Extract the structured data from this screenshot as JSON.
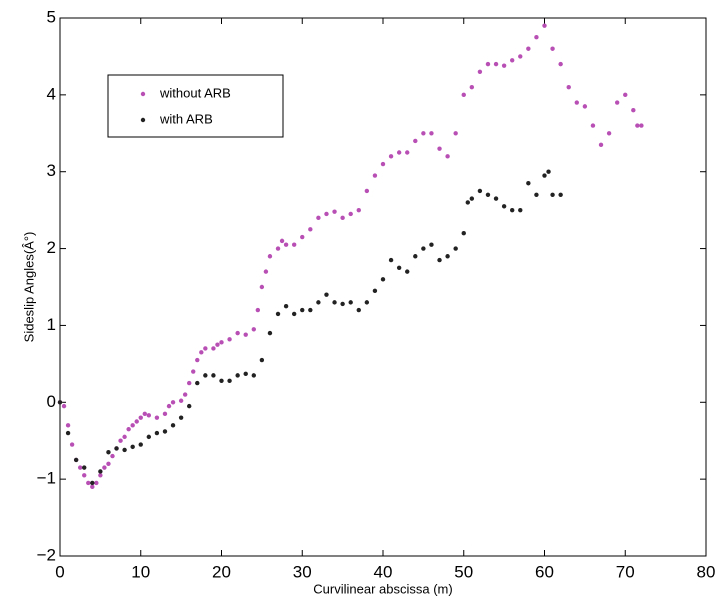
{
  "chart_data": {
    "type": "scatter",
    "xlabel": "Curvilinear abscissa (m)",
    "ylabel": "Sideslip Angles(Â°)",
    "xlim": [
      0,
      80
    ],
    "xticks": [
      0,
      10,
      20,
      30,
      40,
      50,
      60,
      70,
      80
    ],
    "ylim": [
      -2,
      5
    ],
    "yticks": [
      {
        "value": -2,
        "label": "−2"
      },
      {
        "value": -1,
        "label": "−1"
      },
      0,
      1,
      2,
      3,
      4,
      5
    ],
    "legend": "upper left",
    "series": [
      {
        "name": "without ARB",
        "color": "#b84fb5",
        "x": [
          0,
          0.5,
          1,
          1.5,
          2,
          2.5,
          3,
          3.5,
          4,
          4.5,
          5,
          5.5,
          6,
          6.5,
          7,
          7.5,
          8,
          8.5,
          9,
          9.5,
          10,
          10.5,
          11,
          12,
          13,
          13.5,
          14,
          15,
          15.5,
          16,
          16.5,
          17,
          17.5,
          18,
          19,
          19.5,
          20,
          21,
          22,
          23,
          24,
          24.5,
          25,
          25.5,
          26,
          27,
          27.5,
          28,
          29,
          30,
          31,
          32,
          33,
          34,
          35,
          36,
          37,
          38,
          39,
          40,
          41,
          42,
          43,
          44,
          45,
          46,
          47,
          48,
          49,
          50,
          51,
          52,
          53,
          54,
          55,
          56,
          57,
          58,
          59,
          60,
          61,
          62,
          63,
          64,
          65,
          66,
          67,
          68,
          69,
          70,
          71,
          71.5,
          72
        ],
        "values": [
          0,
          -0.05,
          -0.3,
          -0.55,
          -0.75,
          -0.85,
          -0.95,
          -1.05,
          -1.1,
          -1.05,
          -0.95,
          -0.85,
          -0.8,
          -0.7,
          -0.6,
          -0.5,
          -0.45,
          -0.35,
          -0.3,
          -0.25,
          -0.2,
          -0.15,
          -0.17,
          -0.2,
          -0.15,
          -0.05,
          0,
          0.02,
          0.1,
          0.25,
          0.4,
          0.55,
          0.65,
          0.7,
          0.7,
          0.75,
          0.78,
          0.82,
          0.9,
          0.88,
          0.95,
          1.2,
          1.5,
          1.7,
          1.9,
          2.0,
          2.1,
          2.05,
          2.05,
          2.15,
          2.25,
          2.4,
          2.45,
          2.48,
          2.4,
          2.45,
          2.5,
          2.75,
          2.95,
          3.1,
          3.2,
          3.25,
          3.25,
          3.4,
          3.5,
          3.5,
          3.3,
          3.2,
          3.5,
          4.0,
          4.1,
          4.3,
          4.4,
          4.4,
          4.38,
          4.45,
          4.5,
          4.6,
          4.75,
          4.9,
          4.6,
          4.4,
          4.1,
          3.9,
          3.85,
          3.6,
          3.35,
          3.5,
          3.9,
          4.0,
          3.8,
          3.6,
          3.6
        ]
      },
      {
        "name": "with ARB",
        "color": "#222222",
        "x": [
          0,
          1,
          2,
          3,
          4,
          5,
          6,
          7,
          8,
          9,
          10,
          11,
          12,
          13,
          14,
          15,
          16,
          17,
          18,
          19,
          20,
          21,
          22,
          23,
          24,
          25,
          26,
          27,
          28,
          29,
          30,
          31,
          32,
          33,
          34,
          35,
          36,
          37,
          38,
          39,
          40,
          41,
          42,
          43,
          44,
          45,
          46,
          47,
          48,
          49,
          50,
          50.5,
          51,
          52,
          53,
          54,
          55,
          56,
          57,
          58,
          59,
          60,
          60.5,
          61,
          62
        ],
        "values": [
          0,
          -0.4,
          -0.75,
          -0.85,
          -1.05,
          -0.9,
          -0.65,
          -0.6,
          -0.62,
          -0.58,
          -0.55,
          -0.45,
          -0.4,
          -0.38,
          -0.3,
          -0.2,
          -0.05,
          0.25,
          0.35,
          0.35,
          0.28,
          0.28,
          0.35,
          0.37,
          0.35,
          0.55,
          0.9,
          1.15,
          1.25,
          1.15,
          1.2,
          1.2,
          1.3,
          1.4,
          1.3,
          1.28,
          1.3,
          1.2,
          1.3,
          1.45,
          1.6,
          1.85,
          1.75,
          1.7,
          1.9,
          2.0,
          2.05,
          1.85,
          1.9,
          2.0,
          2.2,
          2.6,
          2.65,
          2.75,
          2.7,
          2.65,
          2.55,
          2.5,
          2.5,
          2.85,
          2.7,
          2.95,
          3.0,
          2.7,
          2.7
        ]
      }
    ]
  }
}
